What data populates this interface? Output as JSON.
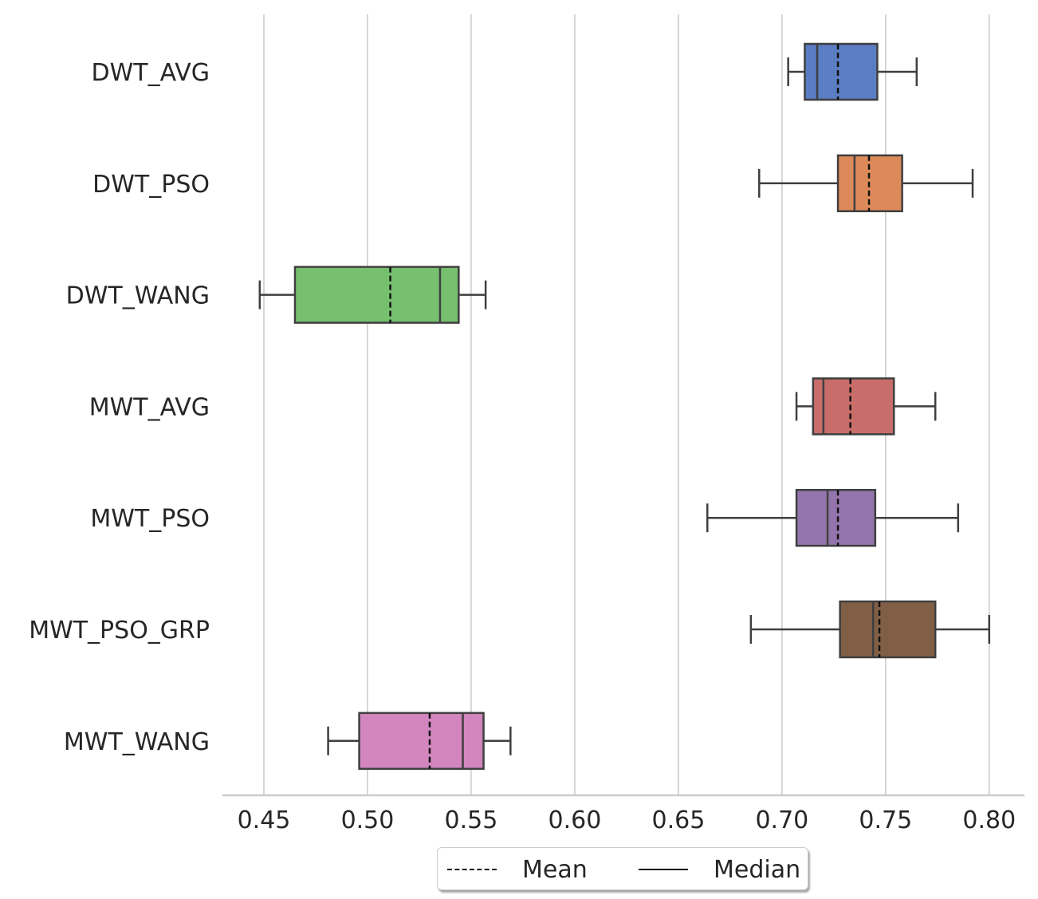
{
  "chart_data": {
    "type": "boxplot",
    "orientation": "horizontal",
    "categories": [
      "DWT_AVG",
      "DWT_PSO",
      "DWT_WANG",
      "MWT_AVG",
      "MWT_PSO",
      "MWT_PSO_GRP",
      "MWT_WANG"
    ],
    "boxes": [
      {
        "name": "DWT_AVG",
        "whisker_low": 0.703,
        "q1": 0.711,
        "median": 0.717,
        "mean": 0.727,
        "q3": 0.746,
        "whisker_high": 0.765,
        "color": "#5a7dc3"
      },
      {
        "name": "DWT_PSO",
        "whisker_low": 0.689,
        "q1": 0.727,
        "median": 0.735,
        "mean": 0.742,
        "q3": 0.758,
        "whisker_high": 0.792,
        "color": "#dd8a5b"
      },
      {
        "name": "DWT_WANG",
        "whisker_low": 0.448,
        "q1": 0.465,
        "median": 0.535,
        "mean": 0.511,
        "q3": 0.544,
        "whisker_high": 0.557,
        "color": "#76c06f"
      },
      {
        "name": "MWT_AVG",
        "whisker_low": 0.707,
        "q1": 0.715,
        "median": 0.72,
        "mean": 0.733,
        "q3": 0.754,
        "whisker_high": 0.774,
        "color": "#c96d6b"
      },
      {
        "name": "MWT_PSO",
        "whisker_low": 0.664,
        "q1": 0.707,
        "median": 0.722,
        "mean": 0.727,
        "q3": 0.745,
        "whisker_high": 0.785,
        "color": "#9375ac"
      },
      {
        "name": "MWT_PSO_GRP",
        "whisker_low": 0.685,
        "q1": 0.728,
        "median": 0.744,
        "mean": 0.747,
        "q3": 0.774,
        "whisker_high": 0.8,
        "color": "#805f46"
      },
      {
        "name": "MWT_WANG",
        "whisker_low": 0.481,
        "q1": 0.496,
        "median": 0.546,
        "mean": 0.53,
        "q3": 0.556,
        "whisker_high": 0.569,
        "color": "#d286bd"
      }
    ],
    "xlim": [
      0.43,
      0.817
    ],
    "xticks": [
      0.45,
      0.5,
      0.55,
      0.6,
      0.65,
      0.7,
      0.75,
      0.8
    ],
    "xtick_labels": [
      "0.45",
      "0.50",
      "0.55",
      "0.60",
      "0.65",
      "0.70",
      "0.75",
      "0.80"
    ],
    "grid": "vertical",
    "xlabel": "",
    "ylabel": "",
    "title": "",
    "legend": {
      "placement": "bottom-center",
      "entries": [
        {
          "label": "Mean",
          "style": "dashed"
        },
        {
          "label": "Median",
          "style": "solid"
        }
      ]
    }
  }
}
